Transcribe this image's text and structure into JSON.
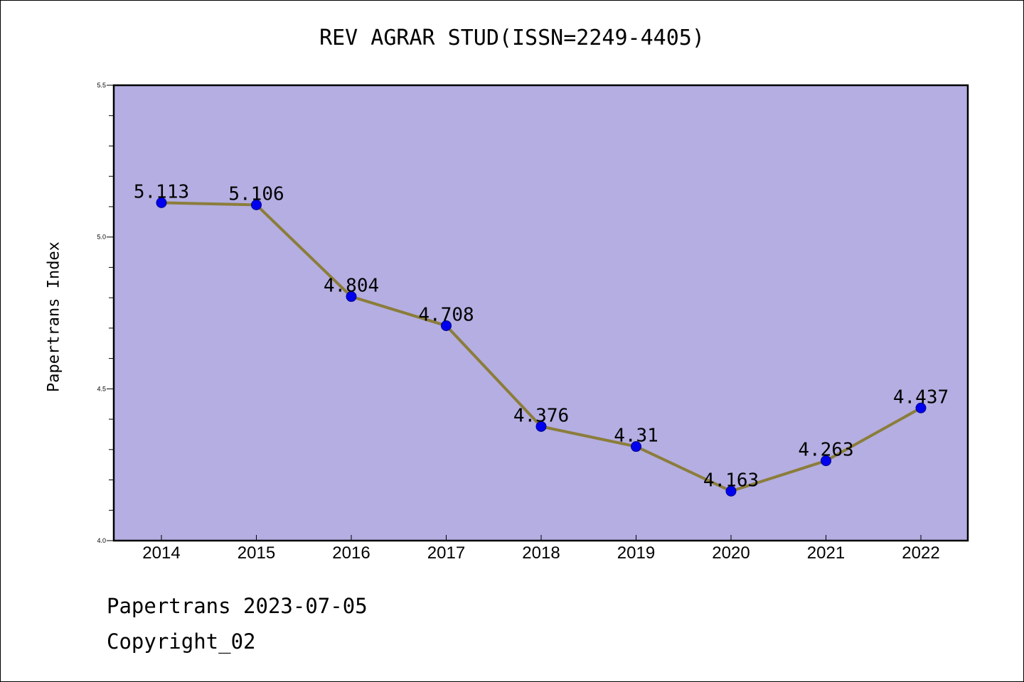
{
  "chart_data": {
    "type": "line",
    "title": "REV AGRAR STUD(ISSN=2249-4405)",
    "xlabel": "",
    "ylabel": "Papertrans Index",
    "x": [
      "2014",
      "2015",
      "2016",
      "2017",
      "2018",
      "2019",
      "2020",
      "2021",
      "2022"
    ],
    "series": [
      {
        "values": [
          5.113,
          5.106,
          4.804,
          4.708,
          4.376,
          4.31,
          4.163,
          4.263,
          4.437
        ],
        "labels": [
          "5.113",
          "5.106",
          "4.804",
          "4.708",
          "4.376",
          "4.31",
          "4.163",
          "4.263",
          "4.437"
        ]
      }
    ],
    "ylim": [
      4.0,
      5.5
    ],
    "y_ticks": [
      4.0,
      4.5,
      5.0,
      5.5
    ],
    "y_tick_labels": [
      "4.0",
      "4.5",
      "5.0",
      "5.5"
    ],
    "y_minor_step": 0.1,
    "grid": false,
    "colors": {
      "plot_background": "#b4aee2",
      "line": "#8b7d3a",
      "marker": "#0000ee",
      "marker_edge": "#00008b"
    }
  },
  "footer": {
    "date_text": "Papertrans 2023-07-05",
    "copyright_text": "Copyright_02"
  }
}
